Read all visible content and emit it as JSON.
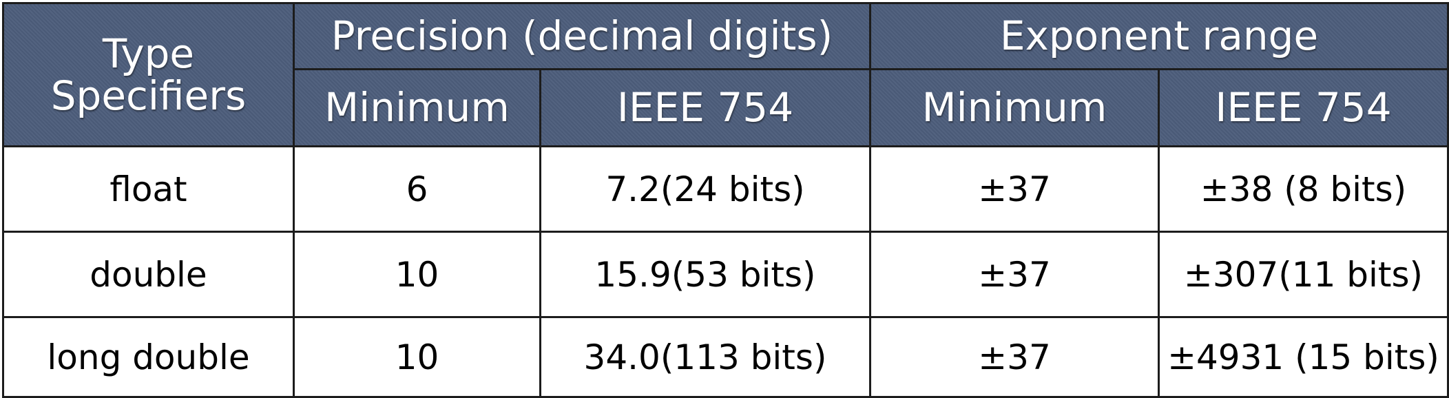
{
  "header": {
    "type_line1": "Type",
    "type_line2": "Specifiers",
    "precision_group": "Precision (decimal digits)",
    "exponent_group": "Exponent range",
    "precision_min": "Minimum",
    "precision_ieee": "IEEE 754",
    "exponent_min": "Minimum",
    "exponent_ieee": "IEEE 754"
  },
  "rows": [
    {
      "type": "float",
      "prec_min": "6",
      "prec_ieee": "7.2(24 bits)",
      "exp_min": "±37",
      "exp_ieee": "±38 (8 bits)"
    },
    {
      "type": "double",
      "prec_min": "10",
      "prec_ieee": "15.9(53 bits)",
      "exp_min": "±37",
      "exp_ieee": "±307(11 bits)"
    },
    {
      "type": "long double",
      "prec_min": "10",
      "prec_ieee": "34.0(113 bits)",
      "exp_min": "±37",
      "exp_ieee": "±4931 (15 bits)"
    }
  ],
  "colors": {
    "header_bg": "#4d5d7b",
    "header_text": "#ffffff",
    "border": "#1c1c1c",
    "body_bg": "#ffffff"
  }
}
